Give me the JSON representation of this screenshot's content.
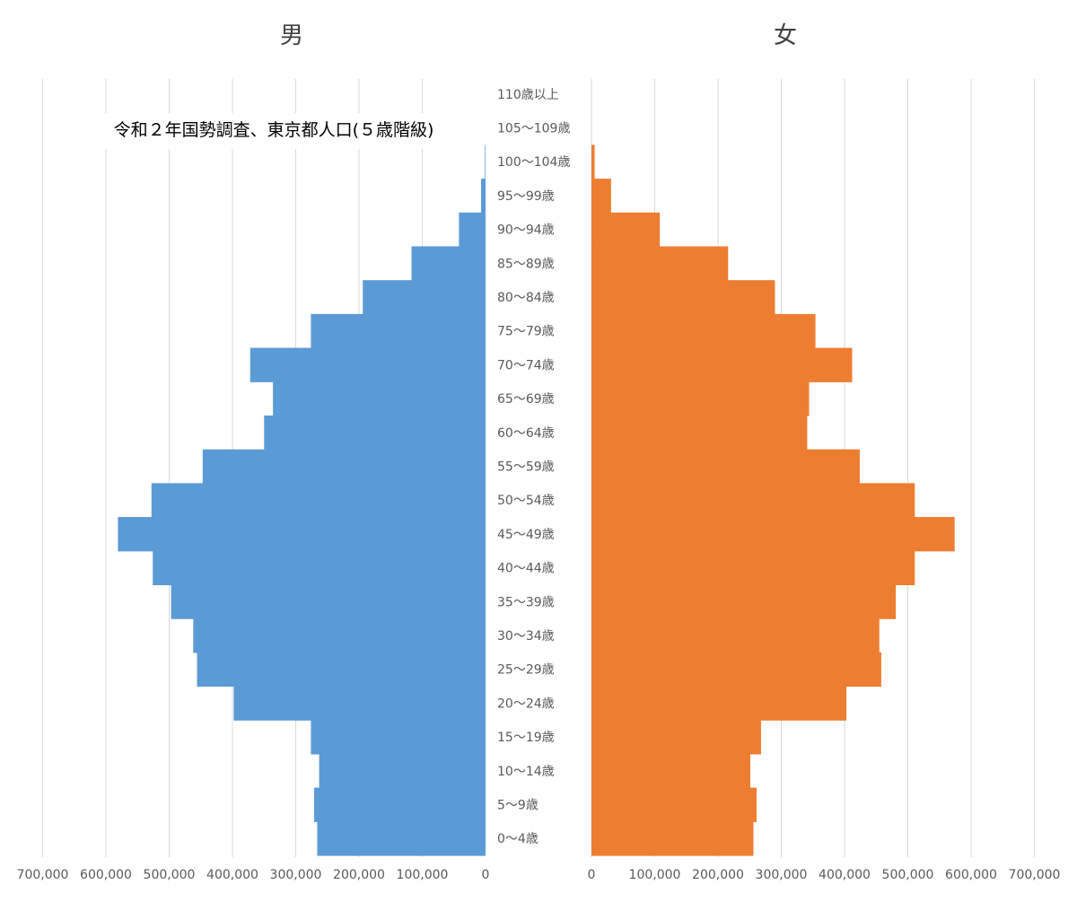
{
  "chart_data": [
    {
      "type": "bar",
      "orientation": "horizontal",
      "direction": "reversed",
      "title": "令和２年国勢調査、東京都人口(５歳階級)",
      "header": "男",
      "color": "#5b9bd5",
      "xlim": [
        0,
        700000
      ],
      "x_ticks": [
        "700,000",
        "600,000",
        "500,000",
        "400,000",
        "300,000",
        "200,000",
        "100,000",
        "0"
      ],
      "x_tick_values": [
        700000,
        600000,
        500000,
        400000,
        300000,
        200000,
        100000,
        0
      ],
      "grid": true,
      "categories": [
        "0～4歳",
        "5～9歳",
        "10～14歳",
        "15～19歳",
        "20～24歳",
        "25～29歳",
        "30～34歳",
        "35～39歳",
        "40～44歳",
        "45～49歳",
        "50～54歳",
        "55～59歳",
        "60～64歳",
        "65～69歳",
        "70～74歳",
        "75～79歳",
        "80～84歳",
        "85～89歳",
        "90～94歳",
        "95～99歳",
        "100～104歳",
        "105～109歳",
        "110歳以上"
      ],
      "values": [
        266000,
        271000,
        263000,
        276000,
        398000,
        456000,
        462000,
        497000,
        526000,
        581000,
        528000,
        447000,
        350000,
        336000,
        372000,
        276000,
        194000,
        117000,
        42000,
        7000,
        1000,
        0,
        0
      ]
    },
    {
      "type": "bar",
      "orientation": "horizontal",
      "header": "女",
      "color": "#ed7d31",
      "xlim": [
        0,
        700000
      ],
      "x_ticks": [
        "0",
        "100,000",
        "200,000",
        "300,000",
        "400,000",
        "500,000",
        "600,000",
        "700,000"
      ],
      "x_tick_values": [
        0,
        100000,
        200000,
        300000,
        400000,
        500000,
        600000,
        700000
      ],
      "grid": true,
      "categories": [
        "0～4歳",
        "5～9歳",
        "10～14歳",
        "15～19歳",
        "20～24歳",
        "25～29歳",
        "30～34歳",
        "35～39歳",
        "40～44歳",
        "45～49歳",
        "50～54歳",
        "55～59歳",
        "60～64歳",
        "65～69歳",
        "70～74歳",
        "75～79歳",
        "80～84歳",
        "85～89歳",
        "90～94歳",
        "95～99歳",
        "100～104歳",
        "105～109歳",
        "110歳以上"
      ],
      "values": [
        256000,
        261000,
        251000,
        268000,
        403000,
        458000,
        455000,
        481000,
        511000,
        574000,
        511000,
        424000,
        341000,
        344000,
        412000,
        354000,
        290000,
        216000,
        108000,
        31000,
        5000,
        0,
        0
      ]
    }
  ]
}
